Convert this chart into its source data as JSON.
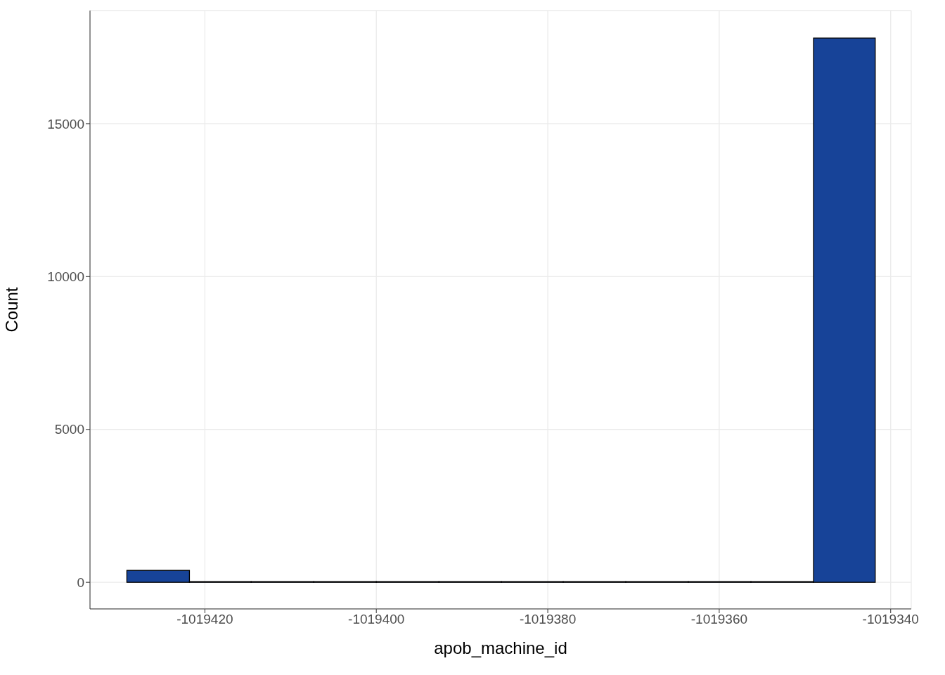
{
  "chart_data": {
    "type": "histogram",
    "xlabel": "apob_machine_id",
    "ylabel": "Count",
    "bins": [
      -1019429.1,
      -1019421.8,
      -1019414.6,
      -1019407.3,
      -1019400.0,
      -1019392.7,
      -1019385.4,
      -1019378.2,
      -1019370.9,
      -1019363.6,
      -1019356.3,
      -1019349.0,
      -1019341.8
    ],
    "values": [
      390,
      0,
      0,
      0,
      0,
      0,
      0,
      0,
      0,
      0,
      0,
      17800
    ],
    "color": "#174398",
    "xlim": [
      -1019433.4,
      -1019337.6
    ],
    "xticks": [
      -1019420,
      -1019400,
      -1019380,
      -1019360,
      -1019340
    ],
    "ylim": [
      -870,
      18700
    ],
    "yticks": [
      0,
      5000,
      10000,
      15000
    ],
    "grid": true
  }
}
